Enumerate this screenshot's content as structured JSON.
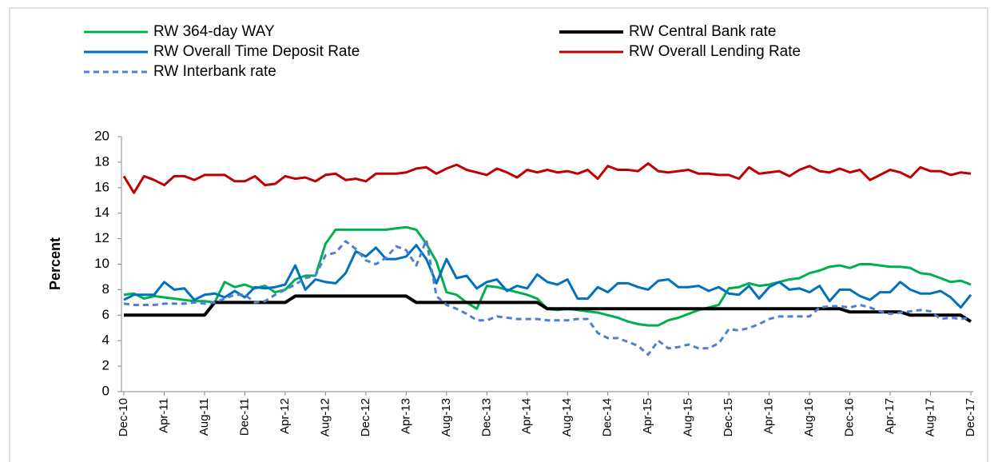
{
  "chart_data": {
    "type": "line",
    "y_label": "Percent",
    "categories": [
      "Dec-10",
      null,
      null,
      null,
      "Apr-11",
      null,
      null,
      null,
      "Aug-11",
      null,
      null,
      null,
      "Dec-11",
      null,
      null,
      null,
      "Apr-12",
      null,
      null,
      null,
      "Aug-12",
      null,
      null,
      null,
      "Dec-12",
      null,
      null,
      null,
      "Apr-13",
      null,
      null,
      null,
      "Aug-13",
      null,
      null,
      null,
      "Dec-13",
      null,
      null,
      null,
      "Apr-14",
      null,
      null,
      null,
      "Aug-14",
      null,
      null,
      null,
      "Dec-14",
      null,
      null,
      null,
      "Apr-15",
      null,
      null,
      null,
      "Aug-15",
      null,
      null,
      null,
      "Dec-15",
      null,
      null,
      null,
      "Apr-16",
      null,
      null,
      null,
      "Aug-16",
      null,
      null,
      null,
      "Dec-16",
      null,
      null,
      null,
      "Apr-17",
      null,
      null,
      null,
      "Aug-17",
      null,
      null,
      null,
      "Dec-17"
    ],
    "series": [
      {
        "name": "RW 364-day WAY",
        "color": "#00b050",
        "style": "solid",
        "values": [
          7.6,
          7.7,
          7.3,
          7.5,
          7.4,
          7.3,
          7.2,
          7.1,
          7.1,
          7.0,
          8.6,
          8.2,
          8.4,
          8.1,
          8.3,
          7.8,
          8.0,
          8.8,
          9.1,
          9.1,
          11.6,
          12.7,
          12.7,
          12.7,
          12.7,
          12.7,
          12.7,
          12.8,
          12.9,
          12.7,
          11.6,
          10.2,
          7.8,
          7.6,
          7.0,
          6.5,
          8.3,
          8.2,
          8.0,
          7.8,
          7.6,
          7.3,
          6.5,
          6.4,
          6.5,
          6.4,
          6.3,
          6.2,
          6.0,
          5.8,
          5.5,
          5.3,
          5.2,
          5.2,
          5.6,
          5.8,
          6.1,
          6.4,
          6.6,
          6.8,
          8.1,
          8.2,
          8.5,
          8.3,
          8.4,
          8.6,
          8.8,
          8.9,
          9.3,
          9.5,
          9.8,
          9.9,
          9.7,
          10.0,
          10.0,
          9.9,
          9.8,
          9.8,
          9.7,
          9.3,
          9.2,
          8.9,
          8.6,
          8.7,
          8.4
        ]
      },
      {
        "name": "RW Central Bank rate",
        "color": "#000000",
        "style": "solid",
        "values": [
          6,
          6,
          6,
          6,
          6,
          6,
          6,
          6,
          6,
          7,
          7,
          7,
          7,
          7,
          7,
          7,
          7,
          7.5,
          7.5,
          7.5,
          7.5,
          7.5,
          7.5,
          7.5,
          7.5,
          7.5,
          7.5,
          7.5,
          7.5,
          7,
          7,
          7,
          7,
          7,
          7,
          7,
          7,
          7,
          7,
          7,
          7,
          7,
          6.5,
          6.5,
          6.5,
          6.5,
          6.5,
          6.5,
          6.5,
          6.5,
          6.5,
          6.5,
          6.5,
          6.5,
          6.5,
          6.5,
          6.5,
          6.5,
          6.5,
          6.5,
          6.5,
          6.5,
          6.5,
          6.5,
          6.5,
          6.5,
          6.5,
          6.5,
          6.5,
          6.5,
          6.5,
          6.5,
          6.25,
          6.25,
          6.25,
          6.25,
          6.25,
          6.25,
          6,
          6,
          6,
          6,
          6,
          6,
          5.5
        ]
      },
      {
        "name": "RW Overall Time Deposit Rate",
        "color": "#0070c0",
        "style": "solid",
        "values": [
          7.2,
          7.6,
          7.6,
          7.6,
          8.6,
          8.0,
          8.1,
          7.2,
          7.6,
          7.7,
          7.4,
          7.9,
          7.4,
          8.2,
          8.1,
          8.2,
          8.4,
          9.9,
          8.0,
          8.8,
          8.6,
          8.5,
          9.3,
          11.0,
          10.6,
          11.3,
          10.4,
          10.4,
          10.6,
          11.5,
          10.4,
          8.5,
          10.4,
          8.9,
          9.1,
          8.1,
          8.6,
          8.8,
          7.9,
          8.3,
          8.1,
          9.2,
          8.6,
          8.4,
          8.8,
          7.3,
          7.3,
          8.2,
          7.8,
          8.5,
          8.5,
          8.2,
          8.0,
          8.7,
          8.8,
          8.2,
          8.2,
          8.3,
          7.9,
          8.2,
          7.7,
          7.6,
          8.3,
          7.3,
          8.2,
          8.6,
          8.0,
          8.1,
          7.8,
          8.3,
          7.1,
          8.0,
          8.0,
          7.5,
          7.2,
          7.8,
          7.8,
          8.6,
          8.0,
          7.7,
          7.7,
          7.9,
          7.4,
          6.6,
          7.6
        ]
      },
      {
        "name": "RW Overall Lending Rate",
        "color": "#c00000",
        "style": "solid",
        "values": [
          16.9,
          15.6,
          16.9,
          16.6,
          16.2,
          16.9,
          16.9,
          16.6,
          17.0,
          17.0,
          17.0,
          16.5,
          16.5,
          16.9,
          16.2,
          16.3,
          16.9,
          16.7,
          16.8,
          16.5,
          17.0,
          17.1,
          16.6,
          16.7,
          16.5,
          17.1,
          17.1,
          17.1,
          17.2,
          17.5,
          17.6,
          17.1,
          17.5,
          17.8,
          17.4,
          17.2,
          17.0,
          17.5,
          17.2,
          16.8,
          17.4,
          17.2,
          17.4,
          17.2,
          17.3,
          17.1,
          17.4,
          16.7,
          17.7,
          17.4,
          17.4,
          17.3,
          17.9,
          17.3,
          17.2,
          17.3,
          17.4,
          17.1,
          17.1,
          17.0,
          17.0,
          16.7,
          17.6,
          17.1,
          17.2,
          17.3,
          16.9,
          17.4,
          17.7,
          17.3,
          17.2,
          17.5,
          17.2,
          17.4,
          16.6,
          17.0,
          17.4,
          17.2,
          16.8,
          17.6,
          17.3,
          17.3,
          17.0,
          17.2,
          17.1
        ]
      },
      {
        "name": "RW Interbank rate",
        "color": "#4f7fd0",
        "style": "dashed",
        "values": [
          6.9,
          6.8,
          6.8,
          6.8,
          6.9,
          6.9,
          6.9,
          7.0,
          6.9,
          7.0,
          7.3,
          7.6,
          7.6,
          7.0,
          7.1,
          7.6,
          8.0,
          8.4,
          8.9,
          9.1,
          10.7,
          10.9,
          11.8,
          11.2,
          10.3,
          10.0,
          10.5,
          11.4,
          11.1,
          9.9,
          11.9,
          7.5,
          6.8,
          6.5,
          6.1,
          5.6,
          5.6,
          5.9,
          5.8,
          5.7,
          5.7,
          5.7,
          5.6,
          5.6,
          5.6,
          5.7,
          5.7,
          4.6,
          4.2,
          4.2,
          3.9,
          3.6,
          2.9,
          4.0,
          3.4,
          3.5,
          3.7,
          3.4,
          3.4,
          3.8,
          4.9,
          4.8,
          5.0,
          5.3,
          5.7,
          5.9,
          5.9,
          5.9,
          5.9,
          6.6,
          6.7,
          6.7,
          6.6,
          6.8,
          6.6,
          6.3,
          6.1,
          6.2,
          6.3,
          6.4,
          6.3,
          5.7,
          5.8,
          5.7,
          5.8
        ]
      }
    ],
    "ylim": [
      0,
      20
    ],
    "yticks": [
      0,
      2,
      4,
      6,
      8,
      10,
      12,
      14,
      16,
      18,
      20
    ],
    "grid": false
  }
}
